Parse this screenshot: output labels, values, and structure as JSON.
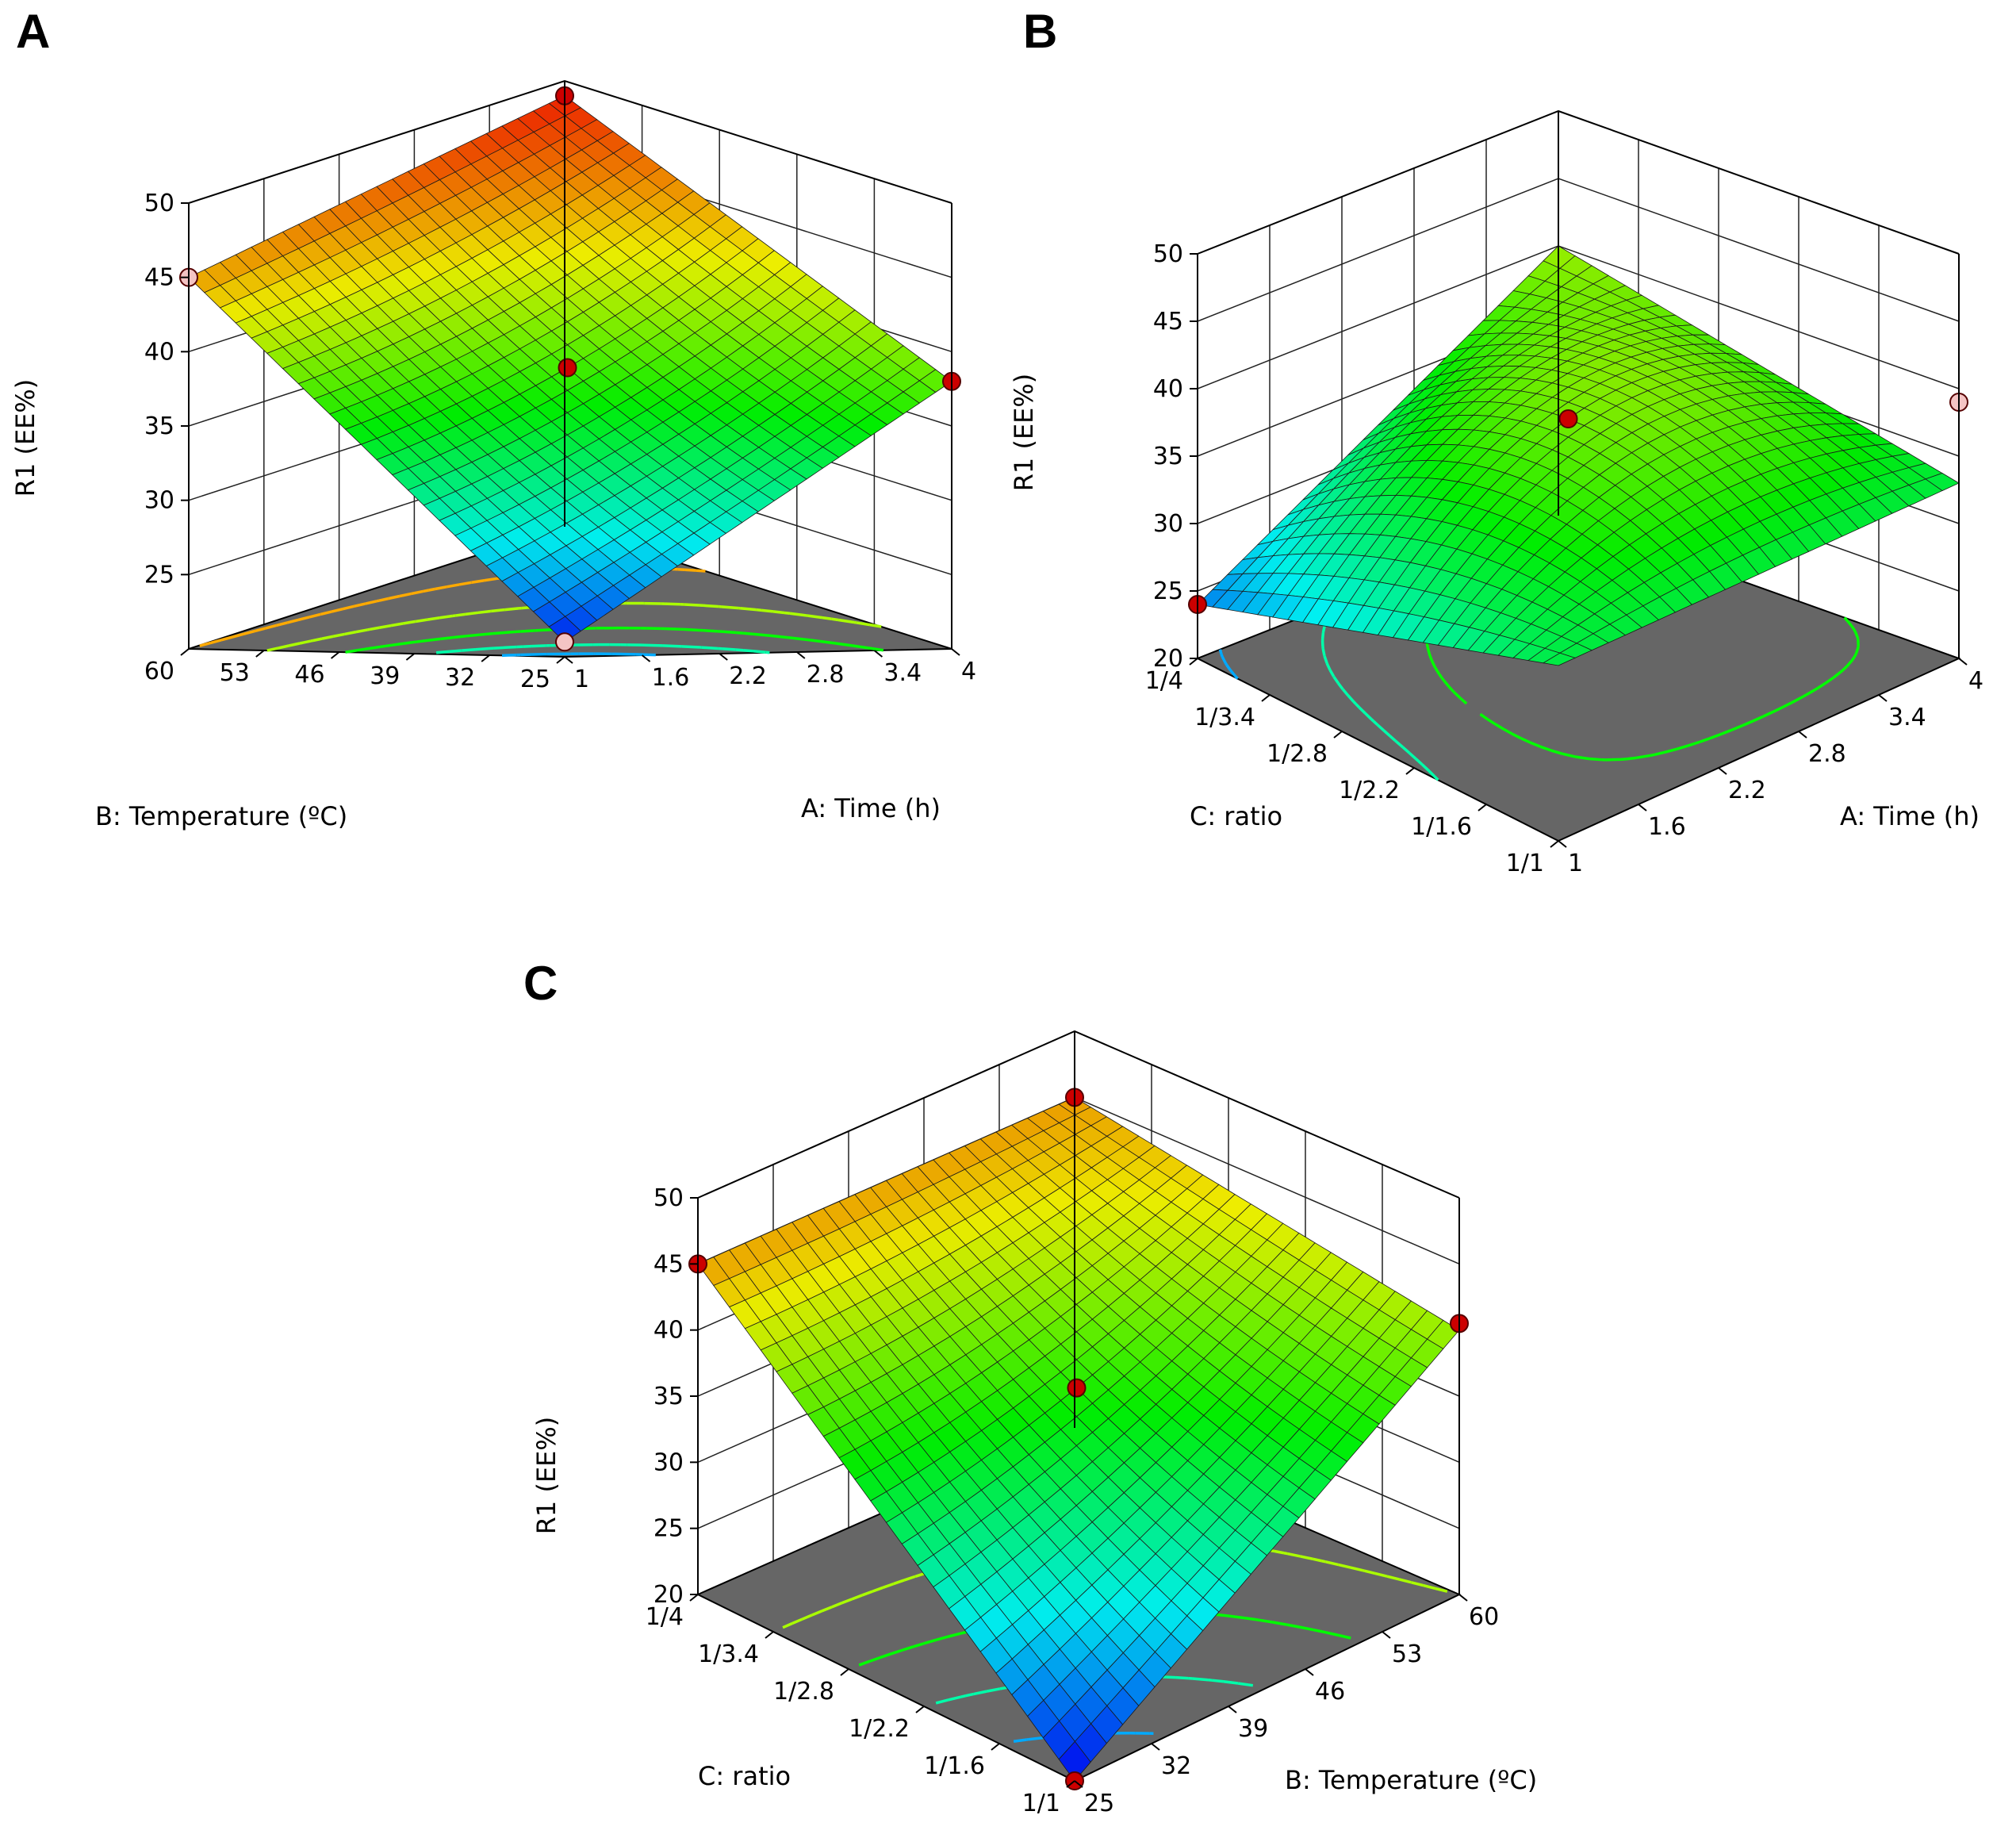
{
  "figure": {
    "panels": [
      "A",
      "B",
      "C"
    ]
  },
  "chart_data": [
    {
      "type": "surface3d",
      "panel": "A",
      "title": "A",
      "zlabel": "R1 (EE%)",
      "zlim": [
        20,
        50
      ],
      "zticks": [
        "25",
        "30",
        "35",
        "40",
        "45",
        "50"
      ],
      "xlabel": "A: Time (h)",
      "xticks": [
        "1",
        "1.6",
        "2.2",
        "2.8",
        "3.4",
        "4"
      ],
      "ylabel": "B: Temperature (ºC)",
      "yticks": [
        "25",
        "32",
        "39",
        "46",
        "53",
        "60"
      ],
      "surface": {
        "z00": 21.0,
        "z10": 38.0,
        "z01": 45.0,
        "z11": 49.0,
        "zc": 37.0
      },
      "design_points": [
        {
          "x": 0.0,
          "y": 0.0,
          "z": 21.0,
          "above": false
        },
        {
          "x": 0.0,
          "y": 1.0,
          "z": 45.0,
          "above": false
        },
        {
          "x": 1.0,
          "y": 1.0,
          "z": 49.0,
          "above": true
        },
        {
          "x": 1.0,
          "y": 0.0,
          "z": 38.0,
          "above": true
        },
        {
          "x": 0.5,
          "y": 0.5,
          "z": 37.0,
          "above": true
        }
      ]
    },
    {
      "type": "surface3d",
      "panel": "B",
      "title": "B",
      "zlabel": "R1 (EE%)",
      "zlim": [
        20,
        50
      ],
      "zticks": [
        "20",
        "25",
        "30",
        "35",
        "40",
        "45",
        "50"
      ],
      "xlabel": "A: Time (h)",
      "xticks": [
        "1",
        "1.6",
        "2.2",
        "2.8",
        "3.4",
        "4"
      ],
      "ylabel": "C: ratio",
      "yticks": [
        "1/1",
        "1/1.6",
        "1/2.2",
        "1/2.8",
        "1/3.4",
        "1/4"
      ],
      "surface": {
        "z00": 33.0,
        "z10": 33.0,
        "z01": 24.0,
        "z11": 40.0,
        "zc": 38.5
      },
      "design_points": [
        {
          "x": 0.0,
          "y": 1.0,
          "z": 24.0,
          "above": true
        },
        {
          "x": 1.0,
          "y": 0.0,
          "z": 39.0,
          "above": false
        },
        {
          "x": 0.5,
          "y": 0.5,
          "z": 38.5,
          "above": true
        }
      ]
    },
    {
      "type": "surface3d",
      "panel": "C",
      "title": "C",
      "zlabel": "R1 (EE%)",
      "zlim": [
        20,
        50
      ],
      "zticks": [
        "20",
        "25",
        "30",
        "35",
        "40",
        "45",
        "50"
      ],
      "xlabel": "B: Temperature (ºC)",
      "xticks": [
        "25",
        "32",
        "39",
        "46",
        "53",
        "60"
      ],
      "ylabel": "C: ratio",
      "yticks": [
        "1/1",
        "1/1.6",
        "1/2.2",
        "1/2.8",
        "1/3.4",
        "1/4"
      ],
      "surface": {
        "z00": 20.0,
        "z10": 40.0,
        "z01": 45.0,
        "z11": 45.0,
        "zc": 36.0
      },
      "design_points": [
        {
          "x": 0.0,
          "y": 0.0,
          "z": 20.0,
          "above": true
        },
        {
          "x": 1.0,
          "y": 0.0,
          "z": 40.5,
          "above": true
        },
        {
          "x": 0.0,
          "y": 1.0,
          "z": 45.0,
          "above": true
        },
        {
          "x": 1.0,
          "y": 1.0,
          "z": 45.0,
          "above": true
        },
        {
          "x": 0.5,
          "y": 0.5,
          "z": 36.0,
          "above": true
        }
      ]
    }
  ]
}
